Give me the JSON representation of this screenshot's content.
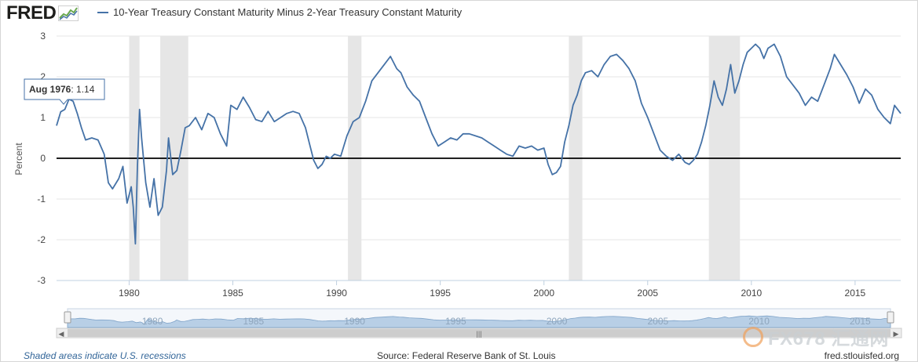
{
  "header": {
    "logo_text": "FRED",
    "logo_icon": "chart-line-icon",
    "legend_label": "10-Year Treasury Constant Maturity Minus 2-Year Treasury Constant Maturity"
  },
  "tooltip": {
    "date": "Aug 1976",
    "value": "1.14"
  },
  "footer": {
    "recession_note": "Shaded areas indicate U.S. recessions",
    "source": "Source: Federal Reserve Bank of St. Louis",
    "url": "fred.stlouisfed.org"
  },
  "watermark": {
    "text": "FX678 汇通网"
  },
  "colors": {
    "series": "#4572a7",
    "recession": "#e6e6e6",
    "grid": "#e6e6e6",
    "navigator": "#b8cfe6"
  },
  "chart_data": {
    "type": "line",
    "title": "",
    "xlabel": "",
    "ylabel": "Percent",
    "xlim": [
      1976.5,
      2017.2
    ],
    "ylim": [
      -3,
      3
    ],
    "yticks": [
      3,
      2,
      1,
      0,
      -1,
      -2,
      -3
    ],
    "xticks": [
      1980,
      1985,
      1990,
      1995,
      2000,
      2005,
      2010,
      2015
    ],
    "navigator_ticks": [
      1980,
      1985,
      1990,
      1995,
      2000,
      2005,
      2010,
      2015
    ],
    "grid": true,
    "legend": "top-left",
    "recessions": [
      [
        1980.0,
        1980.5
      ],
      [
        1981.5,
        1982.85
      ],
      [
        1990.55,
        1991.2
      ],
      [
        2001.2,
        2001.85
      ],
      [
        2007.95,
        2009.45
      ]
    ],
    "series": [
      {
        "name": "10-Year Treasury Constant Maturity Minus 2-Year Treasury Constant Maturity",
        "x": [
          1976.5,
          1976.7,
          1976.9,
          1977.1,
          1977.3,
          1977.5,
          1977.7,
          1977.9,
          1978.2,
          1978.5,
          1978.8,
          1979.0,
          1979.2,
          1979.5,
          1979.7,
          1979.9,
          1980.1,
          1980.2,
          1980.3,
          1980.4,
          1980.5,
          1980.6,
          1980.8,
          1981.0,
          1981.2,
          1981.4,
          1981.6,
          1981.8,
          1981.9,
          1982.1,
          1982.3,
          1982.5,
          1982.7,
          1982.9,
          1983.2,
          1983.5,
          1983.8,
          1984.1,
          1984.4,
          1984.7,
          1984.9,
          1985.2,
          1985.5,
          1985.8,
          1986.1,
          1986.4,
          1986.7,
          1987.0,
          1987.3,
          1987.6,
          1987.9,
          1988.2,
          1988.5,
          1988.7,
          1988.9,
          1989.1,
          1989.3,
          1989.5,
          1989.7,
          1989.9,
          1990.2,
          1990.5,
          1990.8,
          1991.1,
          1991.4,
          1991.7,
          1992.0,
          1992.3,
          1992.6,
          1992.9,
          1993.1,
          1993.4,
          1993.7,
          1994.0,
          1994.3,
          1994.6,
          1994.9,
          1995.2,
          1995.5,
          1995.8,
          1996.1,
          1996.4,
          1996.7,
          1997.0,
          1997.3,
          1997.6,
          1997.9,
          1998.2,
          1998.5,
          1998.8,
          1999.1,
          1999.4,
          1999.7,
          2000.0,
          2000.2,
          2000.4,
          2000.6,
          2000.8,
          2001.0,
          2001.2,
          2001.4,
          2001.6,
          2001.8,
          2002.0,
          2002.3,
          2002.6,
          2002.9,
          2003.2,
          2003.5,
          2003.8,
          2004.1,
          2004.4,
          2004.7,
          2005.0,
          2005.3,
          2005.6,
          2005.9,
          2006.2,
          2006.5,
          2006.8,
          2007.0,
          2007.2,
          2007.4,
          2007.6,
          2007.8,
          2008.0,
          2008.2,
          2008.4,
          2008.6,
          2008.8,
          2009.0,
          2009.2,
          2009.4,
          2009.6,
          2009.8,
          2010.0,
          2010.2,
          2010.4,
          2010.6,
          2010.8,
          2011.1,
          2011.4,
          2011.7,
          2012.0,
          2012.3,
          2012.6,
          2012.9,
          2013.2,
          2013.5,
          2013.8,
          2014.0,
          2014.3,
          2014.6,
          2014.9,
          2015.2,
          2015.5,
          2015.8,
          2016.1,
          2016.4,
          2016.7,
          2016.9,
          2017.2
        ],
        "values": [
          0.8,
          1.14,
          1.2,
          1.45,
          1.4,
          1.1,
          0.75,
          0.45,
          0.5,
          0.45,
          0.1,
          -0.6,
          -0.75,
          -0.5,
          -0.2,
          -1.1,
          -0.7,
          -1.2,
          -2.1,
          -0.2,
          1.2,
          0.5,
          -0.6,
          -1.2,
          -0.5,
          -1.4,
          -1.2,
          -0.3,
          0.5,
          -0.4,
          -0.3,
          0.2,
          0.75,
          0.8,
          1.0,
          0.7,
          1.1,
          1.0,
          0.6,
          0.3,
          1.3,
          1.2,
          1.5,
          1.25,
          0.95,
          0.9,
          1.15,
          0.9,
          1.0,
          1.1,
          1.15,
          1.1,
          0.75,
          0.35,
          -0.05,
          -0.25,
          -0.15,
          0.05,
          0.0,
          0.1,
          0.05,
          0.55,
          0.9,
          1.0,
          1.4,
          1.9,
          2.1,
          2.3,
          2.5,
          2.2,
          2.1,
          1.75,
          1.55,
          1.4,
          1.0,
          0.6,
          0.3,
          0.4,
          0.5,
          0.45,
          0.6,
          0.6,
          0.55,
          0.5,
          0.4,
          0.3,
          0.2,
          0.1,
          0.05,
          0.3,
          0.25,
          0.3,
          0.2,
          0.25,
          -0.15,
          -0.4,
          -0.35,
          -0.2,
          0.4,
          0.8,
          1.3,
          1.55,
          1.9,
          2.1,
          2.15,
          2.0,
          2.3,
          2.5,
          2.55,
          2.4,
          2.2,
          1.9,
          1.35,
          1.0,
          0.6,
          0.2,
          0.05,
          -0.05,
          0.1,
          -0.1,
          -0.15,
          -0.05,
          0.1,
          0.4,
          0.8,
          1.3,
          1.9,
          1.5,
          1.3,
          1.7,
          2.3,
          1.6,
          1.9,
          2.3,
          2.6,
          2.7,
          2.8,
          2.7,
          2.45,
          2.7,
          2.8,
          2.5,
          2.0,
          1.8,
          1.6,
          1.3,
          1.5,
          1.4,
          1.8,
          2.2,
          2.55,
          2.3,
          2.05,
          1.75,
          1.35,
          1.7,
          1.55,
          1.2,
          1.0,
          0.85,
          1.3,
          1.1
        ]
      }
    ]
  }
}
